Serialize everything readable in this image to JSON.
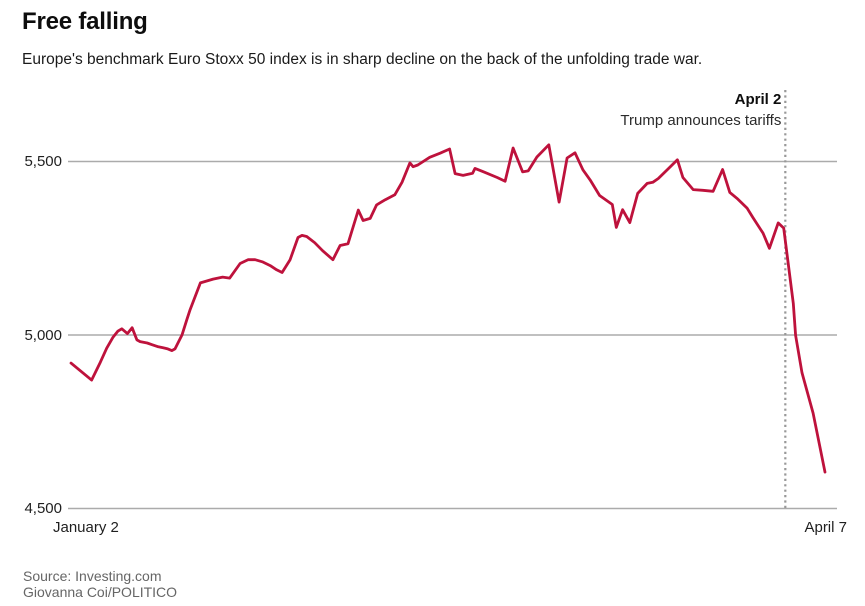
{
  "header": {
    "title": "Free falling",
    "subtitle": "Europe's benchmark Euro Stoxx 50 index is in sharp decline on the back of the unfolding trade war."
  },
  "chart_data": {
    "type": "line",
    "series_name": "Euro Stoxx 50 index",
    "title": "Free falling",
    "subtitle": "Europe's benchmark Euro Stoxx 50 index is in sharp decline on the back of the unfolding trade war.",
    "line_color": "#be123c",
    "grid_color": "#ababab",
    "event_line_color": "#999999",
    "grid": true,
    "legend": "none",
    "ylim": [
      4500,
      5600
    ],
    "y_ticks": [
      {
        "label": "5,500",
        "value": 5500
      },
      {
        "label": "5,000",
        "value": 5000
      },
      {
        "label": "4,500",
        "value": 4500
      }
    ],
    "x_start_label": "January 2",
    "x_end_label": "April 7",
    "x_domain_days": [
      0,
      95
    ],
    "annotation": {
      "title": "April 2",
      "text": "Trump announces tariffs",
      "day": 90
    },
    "points": [
      [
        0,
        4919
      ],
      [
        2.6,
        4870
      ],
      [
        3.7,
        4922
      ],
      [
        4.5,
        4962
      ],
      [
        5.3,
        4994
      ],
      [
        5.9,
        5011
      ],
      [
        6.4,
        5018
      ],
      [
        7.1,
        5004
      ],
      [
        7.7,
        5021
      ],
      [
        8.3,
        4986
      ],
      [
        8.7,
        4981
      ],
      [
        9.6,
        4977
      ],
      [
        10.2,
        4972
      ],
      [
        11,
        4966
      ],
      [
        11.6,
        4963
      ],
      [
        12.2,
        4960
      ],
      [
        12.7,
        4955
      ],
      [
        13.1,
        4960
      ],
      [
        14,
        5001
      ],
      [
        14.6,
        5045
      ],
      [
        15,
        5073
      ],
      [
        16.3,
        5150
      ],
      [
        17.9,
        5161
      ],
      [
        19.1,
        5167
      ],
      [
        20,
        5164
      ],
      [
        21.3,
        5206
      ],
      [
        22.3,
        5217
      ],
      [
        23.2,
        5217
      ],
      [
        24.1,
        5211
      ],
      [
        25.1,
        5200
      ],
      [
        25.9,
        5188
      ],
      [
        26.6,
        5180
      ],
      [
        27.6,
        5217
      ],
      [
        28.6,
        5281
      ],
      [
        29.1,
        5287
      ],
      [
        29.7,
        5284
      ],
      [
        30.7,
        5266
      ],
      [
        31.7,
        5243
      ],
      [
        33,
        5217
      ],
      [
        33.9,
        5258
      ],
      [
        34.9,
        5263
      ],
      [
        35.4,
        5301
      ],
      [
        36.2,
        5360
      ],
      [
        36.8,
        5330
      ],
      [
        37.7,
        5336
      ],
      [
        38.5,
        5375
      ],
      [
        39.6,
        5390
      ],
      [
        40.8,
        5404
      ],
      [
        41.7,
        5440
      ],
      [
        42.7,
        5496
      ],
      [
        43.1,
        5485
      ],
      [
        43.7,
        5490
      ],
      [
        45.2,
        5512
      ],
      [
        46.5,
        5524
      ],
      [
        47.7,
        5536
      ],
      [
        48.4,
        5465
      ],
      [
        49.4,
        5460
      ],
      [
        50.6,
        5466
      ],
      [
        50.9,
        5480
      ],
      [
        51.9,
        5471
      ],
      [
        53.7,
        5454
      ],
      [
        54.7,
        5443
      ],
      [
        55.7,
        5539
      ],
      [
        56.9,
        5470
      ],
      [
        57.6,
        5473
      ],
      [
        58.7,
        5513
      ],
      [
        60.2,
        5548
      ],
      [
        61.5,
        5383
      ],
      [
        62.5,
        5510
      ],
      [
        63.5,
        5525
      ],
      [
        64.5,
        5476
      ],
      [
        65.4,
        5447
      ],
      [
        66.6,
        5402
      ],
      [
        68.2,
        5376
      ],
      [
        68.7,
        5310
      ],
      [
        69.5,
        5361
      ],
      [
        70.4,
        5324
      ],
      [
        71.4,
        5408
      ],
      [
        72.6,
        5437
      ],
      [
        73.3,
        5440
      ],
      [
        74,
        5451
      ],
      [
        75.2,
        5478
      ],
      [
        76.4,
        5505
      ],
      [
        77.1,
        5454
      ],
      [
        78.4,
        5419
      ],
      [
        79.6,
        5417
      ],
      [
        80.9,
        5414
      ],
      [
        82.1,
        5477
      ],
      [
        83,
        5411
      ],
      [
        83.9,
        5394
      ],
      [
        85.2,
        5365
      ],
      [
        85.9,
        5339
      ],
      [
        87.2,
        5293
      ],
      [
        88,
        5250
      ],
      [
        89.1,
        5323
      ],
      [
        89.8,
        5308
      ],
      [
        91,
        5091
      ],
      [
        91.3,
        4999
      ],
      [
        92.1,
        4891
      ],
      [
        93.5,
        4775
      ],
      [
        95,
        4605
      ]
    ]
  },
  "footer": {
    "source": "Source: Investing.com",
    "credit": "Giovanna Coi/POLITICO"
  }
}
